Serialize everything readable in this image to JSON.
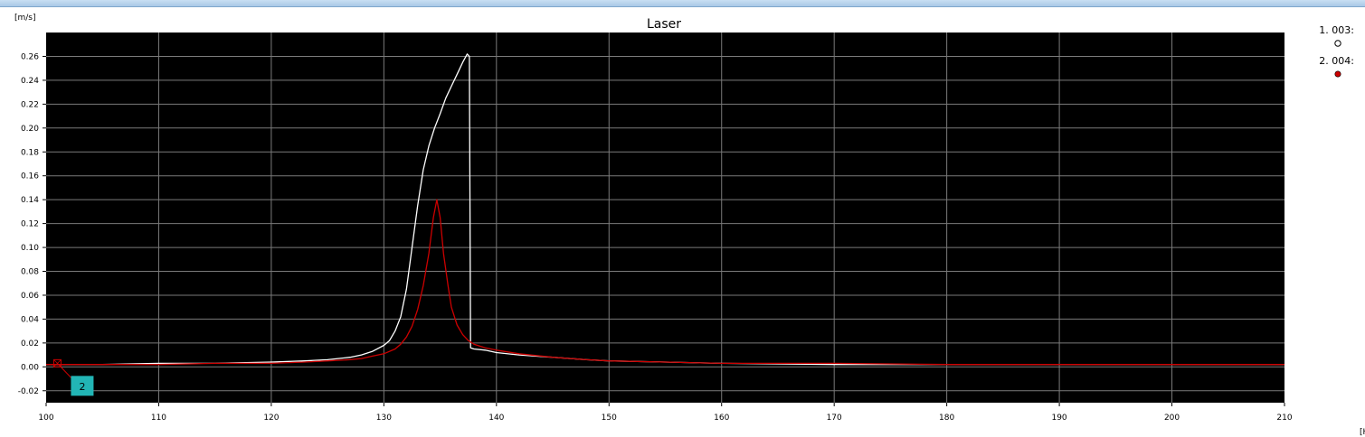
{
  "chart_data": {
    "type": "line",
    "title": "Laser",
    "ylabel": "[m/s]",
    "xlabel": "[H",
    "xlim": [
      100,
      210
    ],
    "ylim": [
      -0.03,
      0.28
    ],
    "x_ticks": [
      100,
      110,
      120,
      130,
      140,
      150,
      160,
      170,
      180,
      190,
      200,
      210
    ],
    "y_ticks": [
      -0.02,
      0.0,
      0.02,
      0.04,
      0.06,
      0.08,
      0.1,
      0.12,
      0.14,
      0.16,
      0.18,
      0.2,
      0.22,
      0.24,
      0.26
    ],
    "y_tick_labels": [
      "-0.02",
      "0.00",
      "0.02",
      "0.04",
      "0.06",
      "0.08",
      "0.10",
      "0.12",
      "0.14",
      "0.16",
      "0.18",
      "0.20",
      "0.22",
      "0.24",
      "0.26"
    ],
    "grid": true,
    "background": "#000000",
    "legend_position": "right",
    "series": [
      {
        "name": "1. 003:",
        "color": "#ffffff",
        "marker": "hollow-circle",
        "points": [
          [
            100,
            0.002
          ],
          [
            105,
            0.002
          ],
          [
            110,
            0.003
          ],
          [
            115,
            0.003
          ],
          [
            120,
            0.004
          ],
          [
            123,
            0.005
          ],
          [
            125,
            0.006
          ],
          [
            127,
            0.008
          ],
          [
            128,
            0.01
          ],
          [
            129,
            0.013
          ],
          [
            130,
            0.018
          ],
          [
            130.5,
            0.022
          ],
          [
            131,
            0.03
          ],
          [
            131.5,
            0.042
          ],
          [
            132,
            0.065
          ],
          [
            132.5,
            0.1
          ],
          [
            133,
            0.135
          ],
          [
            133.5,
            0.165
          ],
          [
            134,
            0.185
          ],
          [
            134.5,
            0.2
          ],
          [
            135,
            0.212
          ],
          [
            135.5,
            0.225
          ],
          [
            136,
            0.235
          ],
          [
            136.5,
            0.245
          ],
          [
            137,
            0.255
          ],
          [
            137.4,
            0.262
          ],
          [
            137.6,
            0.26
          ],
          [
            137.7,
            0.016
          ],
          [
            138,
            0.015
          ],
          [
            139,
            0.014
          ],
          [
            140,
            0.012
          ],
          [
            142,
            0.01
          ],
          [
            145,
            0.008
          ],
          [
            148,
            0.006
          ],
          [
            150,
            0.005
          ],
          [
            155,
            0.004
          ],
          [
            160,
            0.003
          ],
          [
            170,
            0.002
          ],
          [
            180,
            0.002
          ],
          [
            190,
            0.002
          ],
          [
            200,
            0.002
          ],
          [
            210,
            0.002
          ]
        ]
      },
      {
        "name": "2. 004:",
        "color": "#cc0000",
        "marker": "filled-circle",
        "points": [
          [
            100,
            0.002
          ],
          [
            105,
            0.002
          ],
          [
            110,
            0.002
          ],
          [
            115,
            0.003
          ],
          [
            120,
            0.003
          ],
          [
            123,
            0.004
          ],
          [
            125,
            0.005
          ],
          [
            127,
            0.006
          ],
          [
            128,
            0.007
          ],
          [
            129,
            0.009
          ],
          [
            130,
            0.011
          ],
          [
            131,
            0.015
          ],
          [
            131.5,
            0.019
          ],
          [
            132,
            0.025
          ],
          [
            132.5,
            0.034
          ],
          [
            133,
            0.048
          ],
          [
            133.5,
            0.068
          ],
          [
            134,
            0.095
          ],
          [
            134.4,
            0.125
          ],
          [
            134.7,
            0.14
          ],
          [
            135,
            0.125
          ],
          [
            135.3,
            0.095
          ],
          [
            135.7,
            0.068
          ],
          [
            136,
            0.05
          ],
          [
            136.5,
            0.035
          ],
          [
            137,
            0.027
          ],
          [
            137.5,
            0.022
          ],
          [
            138,
            0.019
          ],
          [
            139,
            0.016
          ],
          [
            140,
            0.014
          ],
          [
            142,
            0.011
          ],
          [
            145,
            0.008
          ],
          [
            148,
            0.006
          ],
          [
            150,
            0.005
          ],
          [
            155,
            0.004
          ],
          [
            160,
            0.003
          ],
          [
            170,
            0.003
          ],
          [
            180,
            0.002
          ],
          [
            190,
            0.002
          ],
          [
            200,
            0.002
          ],
          [
            210,
            0.002
          ]
        ]
      }
    ],
    "annotation": {
      "label": "2",
      "x": 101,
      "y": 0.003,
      "color": "#22b5b5"
    }
  }
}
